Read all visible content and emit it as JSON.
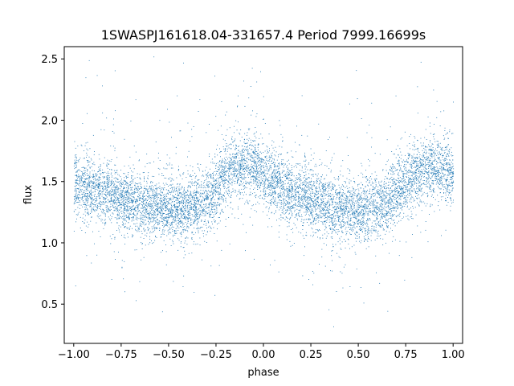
{
  "chart_data": {
    "type": "scatter",
    "title": "1SWASPJ161618.04-331657.4 Period 7999.16699s",
    "xlabel": "phase",
    "ylabel": "flux",
    "xlim": [
      -1.05,
      1.05
    ],
    "ylim": [
      0.18,
      2.6
    ],
    "x_ticks": [
      -1.0,
      -0.75,
      -0.5,
      -0.25,
      0.0,
      0.25,
      0.5,
      0.75,
      1.0
    ],
    "x_tick_labels": [
      "−1.00",
      "−0.75",
      "−0.50",
      "−0.25",
      "0.00",
      "0.25",
      "0.50",
      "0.75",
      "1.00"
    ],
    "y_ticks": [
      0.5,
      1.0,
      1.5,
      2.0,
      2.5
    ],
    "y_tick_labels": [
      "0.5",
      "1.0",
      "1.5",
      "2.0",
      "2.5"
    ],
    "grid": false,
    "point_color": "#1f77b4",
    "trend": {
      "phase": [
        -1.0,
        -0.85,
        -0.75,
        -0.6,
        -0.5,
        -0.4,
        -0.3,
        -0.2,
        -0.15,
        -0.1,
        -0.05,
        0.0,
        0.1,
        0.2,
        0.3,
        0.4,
        0.5,
        0.6,
        0.7,
        0.8,
        0.85,
        0.9,
        0.95,
        1.0
      ],
      "flux": [
        1.48,
        1.42,
        1.35,
        1.3,
        1.28,
        1.28,
        1.36,
        1.56,
        1.62,
        1.64,
        1.62,
        1.56,
        1.46,
        1.38,
        1.32,
        1.28,
        1.26,
        1.3,
        1.42,
        1.56,
        1.6,
        1.62,
        1.6,
        1.56
      ]
    }
  }
}
